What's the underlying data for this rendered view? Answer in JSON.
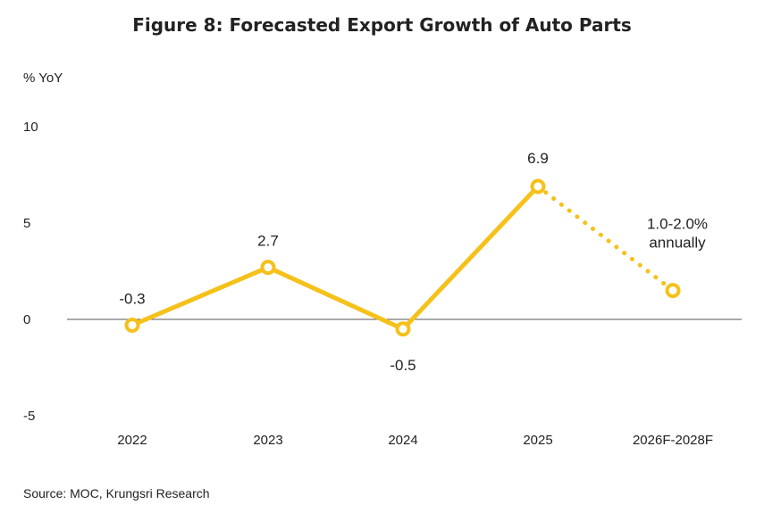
{
  "title": "Figure 8: Forecasted Export Growth of Auto Parts",
  "source": "Source: MOC, Krungsri Research",
  "colors": {
    "line": "#F5C11A",
    "axis": "#555555",
    "text": "#222222"
  },
  "chart_data": {
    "type": "line",
    "title": "Figure 8: Forecasted Export Growth of Auto Parts",
    "ylabel": "% YoY",
    "xlabel": "",
    "categories": [
      "2022",
      "2023",
      "2024",
      "2025",
      "2026F-2028F"
    ],
    "series": [
      {
        "values": [
          -0.3,
          2.7,
          -0.5,
          6.9,
          1.5
        ],
        "data_labels": [
          "-0.3",
          "2.7",
          "-0.5",
          "6.9",
          "1.0-2.0%\nannually"
        ],
        "style_segments": [
          "solid",
          "solid",
          "solid",
          "dotted"
        ]
      }
    ],
    "ylim": [
      -5,
      10
    ],
    "yticks": [
      "-5",
      "0",
      "5",
      "10"
    ],
    "grid": false,
    "legend": "none"
  }
}
